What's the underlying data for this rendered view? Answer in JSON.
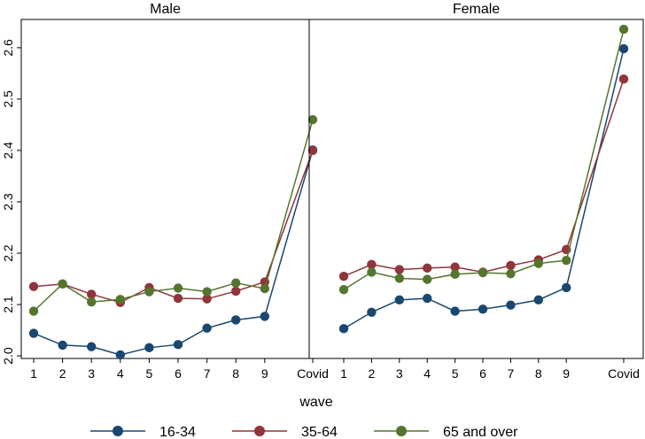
{
  "chart_data": {
    "type": "line",
    "xlabel": "wave",
    "ylabel": "",
    "categories": [
      "1",
      "2",
      "3",
      "4",
      "5",
      "6",
      "7",
      "8",
      "9",
      "Covid"
    ],
    "ylim": [
      1.995,
      2.655
    ],
    "yticks": [
      "2.0",
      "2.1",
      "2.2",
      "2.3",
      "2.4",
      "2.5",
      "2.6"
    ],
    "legend_position": "bottom",
    "grid": false,
    "colors": {
      "16-34": "#1a476f",
      "35-64": "#90353b",
      "65 and over": "#55752f"
    },
    "panels": [
      {
        "title": "Male",
        "series": [
          {
            "name": "16-34",
            "values": [
              2.044,
              2.021,
              2.018,
              2.002,
              2.016,
              2.022,
              2.054,
              2.07,
              2.077,
              2.401
            ]
          },
          {
            "name": "35-64",
            "values": [
              2.135,
              2.14,
              2.12,
              2.104,
              2.133,
              2.112,
              2.111,
              2.126,
              2.144,
              2.4
            ]
          },
          {
            "name": "65 and over",
            "values": [
              2.087,
              2.14,
              2.105,
              2.11,
              2.125,
              2.132,
              2.125,
              2.142,
              2.131,
              2.46
            ]
          }
        ]
      },
      {
        "title": "Female",
        "series": [
          {
            "name": "16-34",
            "values": [
              2.053,
              2.085,
              2.109,
              2.112,
              2.087,
              2.091,
              2.099,
              2.109,
              2.133,
              2.598
            ]
          },
          {
            "name": "35-64",
            "values": [
              2.155,
              2.178,
              2.168,
              2.171,
              2.173,
              2.163,
              2.176,
              2.187,
              2.207,
              2.539
            ]
          },
          {
            "name": "65 and over",
            "values": [
              2.129,
              2.163,
              2.151,
              2.149,
              2.159,
              2.162,
              2.16,
              2.18,
              2.186,
              2.636
            ]
          }
        ]
      }
    ]
  }
}
